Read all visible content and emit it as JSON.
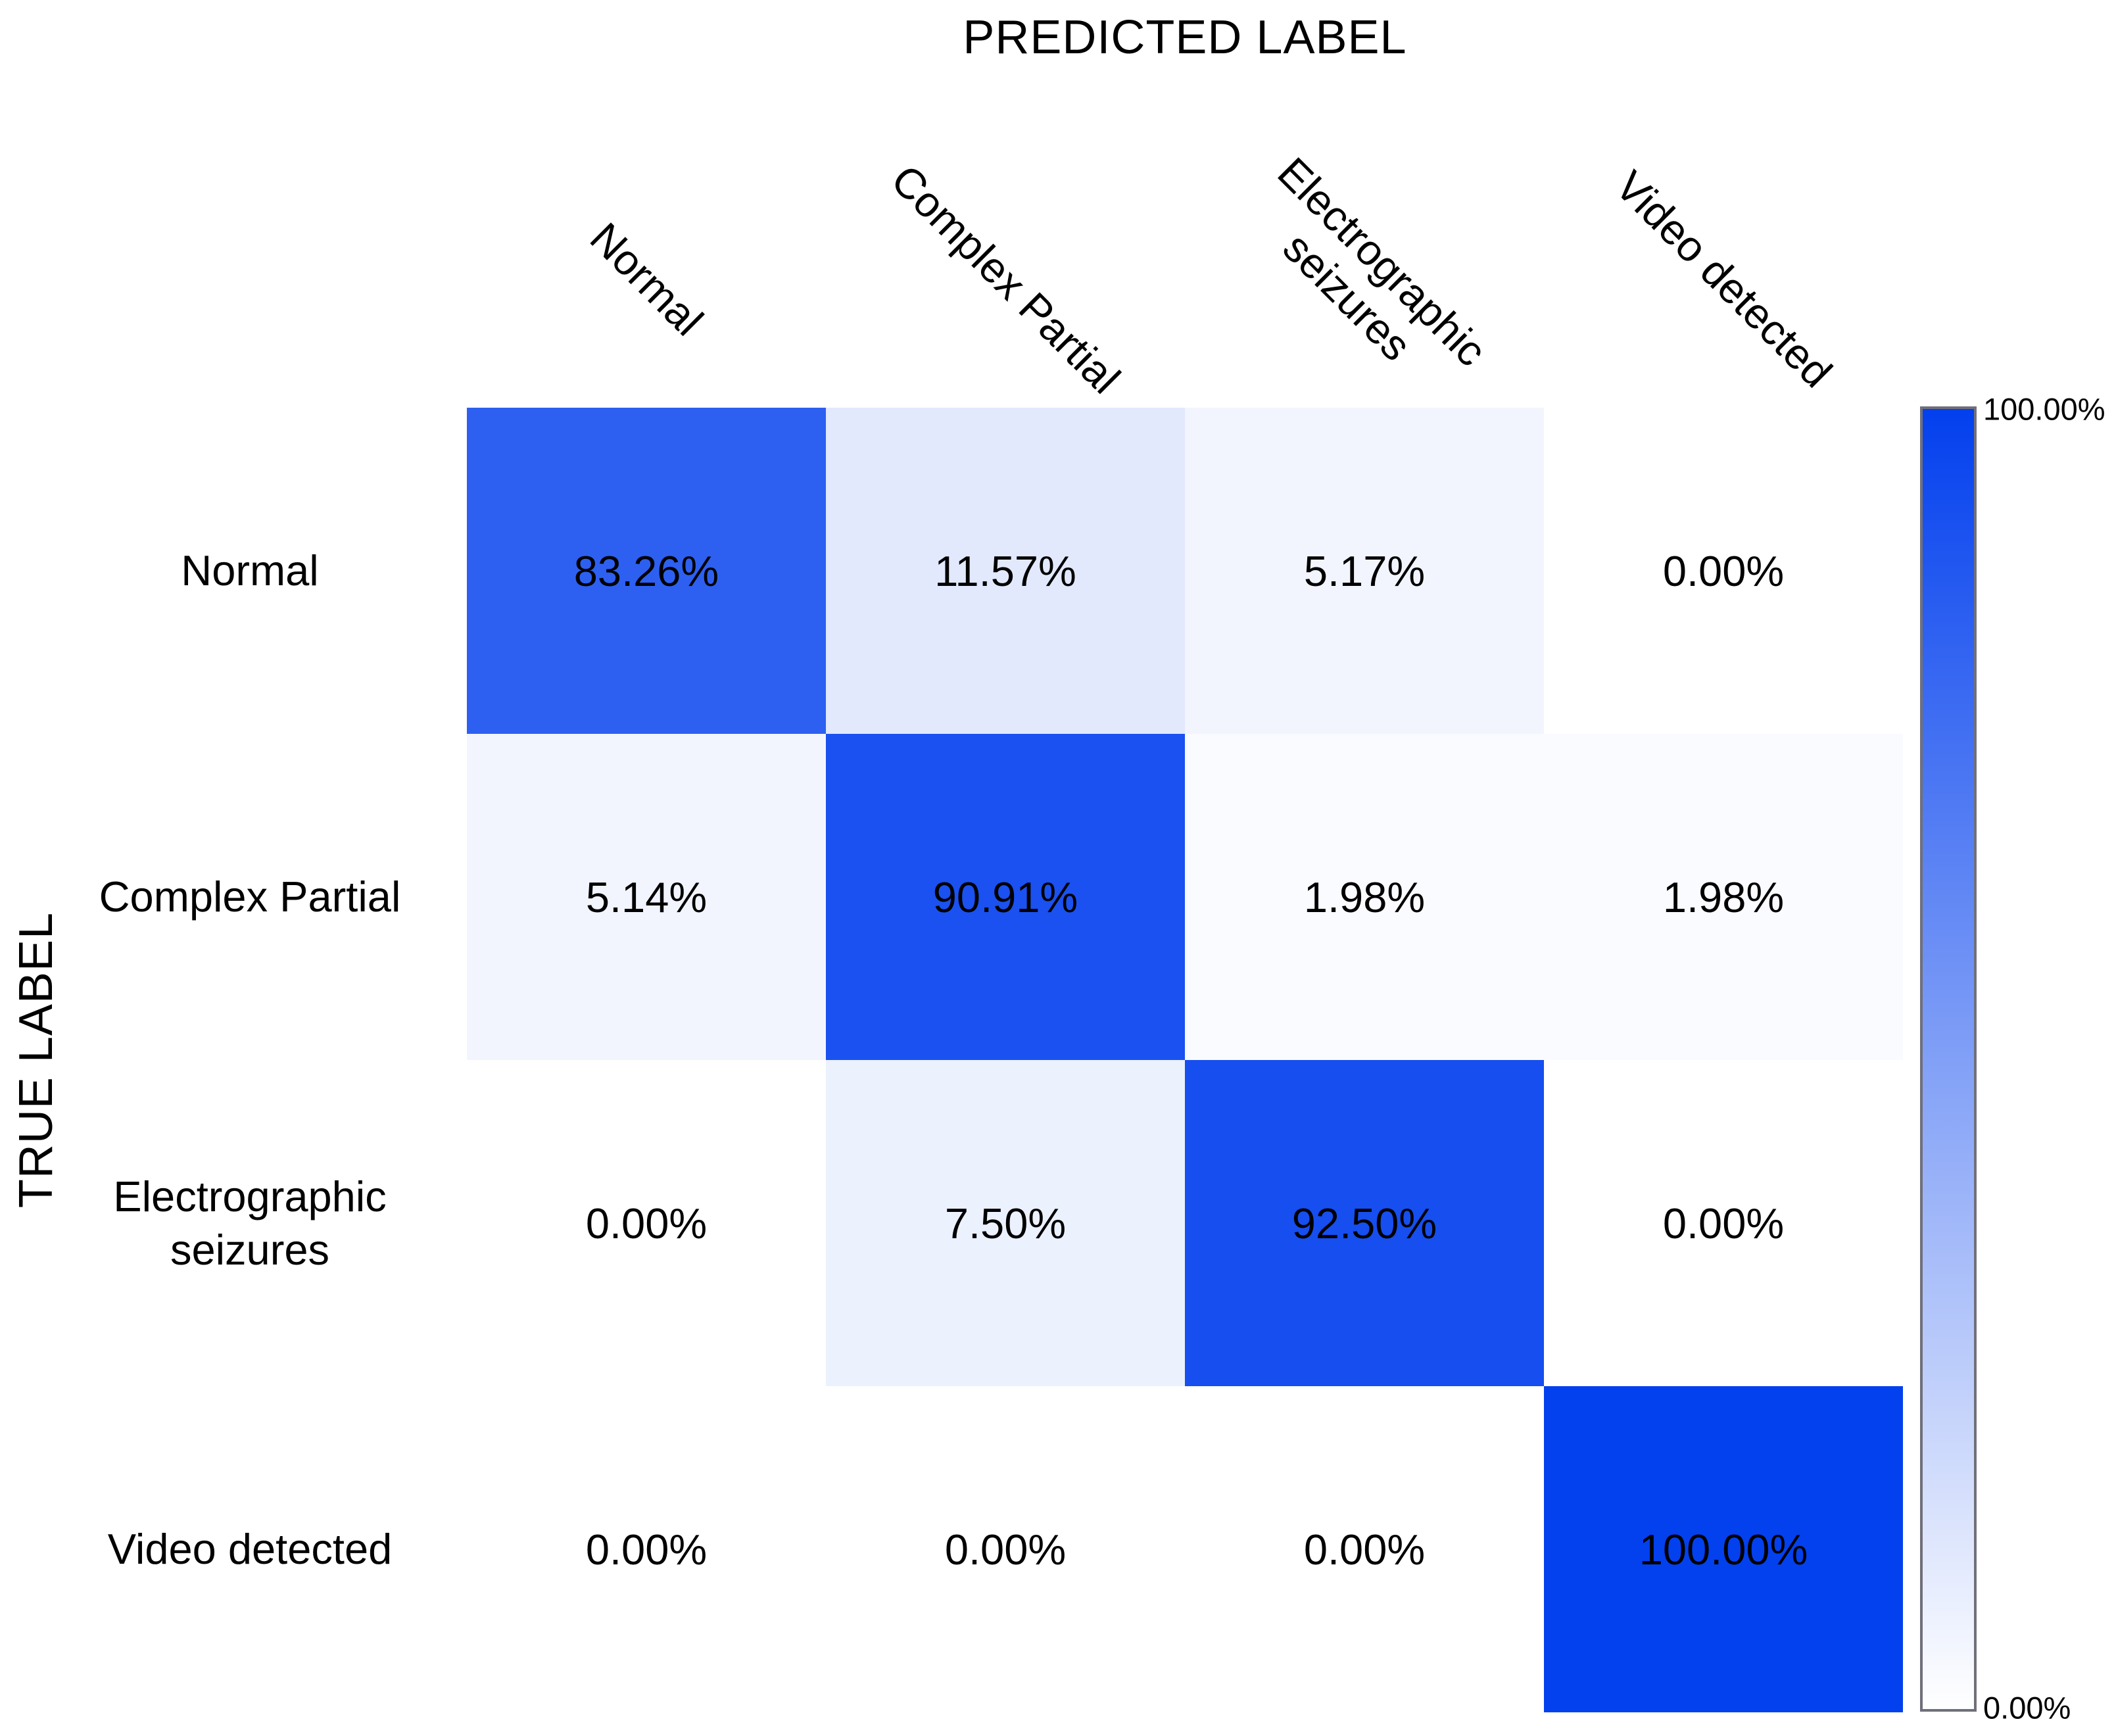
{
  "chart_data": {
    "type": "heatmap",
    "subtype": "confusion-matrix",
    "xlabel": "PREDICTED LABEL",
    "ylabel": "TRUE LABEL",
    "x_categories": [
      "Normal",
      "Complex Partial",
      "Electrographic\nseizures",
      "Video detected"
    ],
    "y_categories": [
      "Normal",
      "Complex Partial",
      "Electrographic\nseizures",
      "Video detected"
    ],
    "matrix_percent": [
      [
        83.26,
        11.57,
        5.17,
        0.0
      ],
      [
        5.14,
        90.91,
        1.98,
        1.98
      ],
      [
        0.0,
        7.5,
        92.5,
        0.0
      ],
      [
        0.0,
        0.0,
        0.0,
        100.0
      ]
    ],
    "cell_labels": [
      [
        "83.26%",
        "11.57%",
        "5.17%",
        "0.00%"
      ],
      [
        "5.14%",
        "90.91%",
        "1.98%",
        "1.98%"
      ],
      [
        "0.00%",
        "7.50%",
        "92.50%",
        "0.00%"
      ],
      [
        "0.00%",
        "0.00%",
        "0.00%",
        "100.00%"
      ]
    ],
    "value_range": [
      0,
      100
    ],
    "grid": false,
    "legend_position": "right-colorbar",
    "colormap": {
      "min_color": "#FFFFFF",
      "max_color": "#0340EE",
      "min_label": "0.00%",
      "max_label": "100.00%",
      "border_color": "#70707a"
    },
    "text_color": "#000000",
    "background_color": "#FFFFFF"
  }
}
